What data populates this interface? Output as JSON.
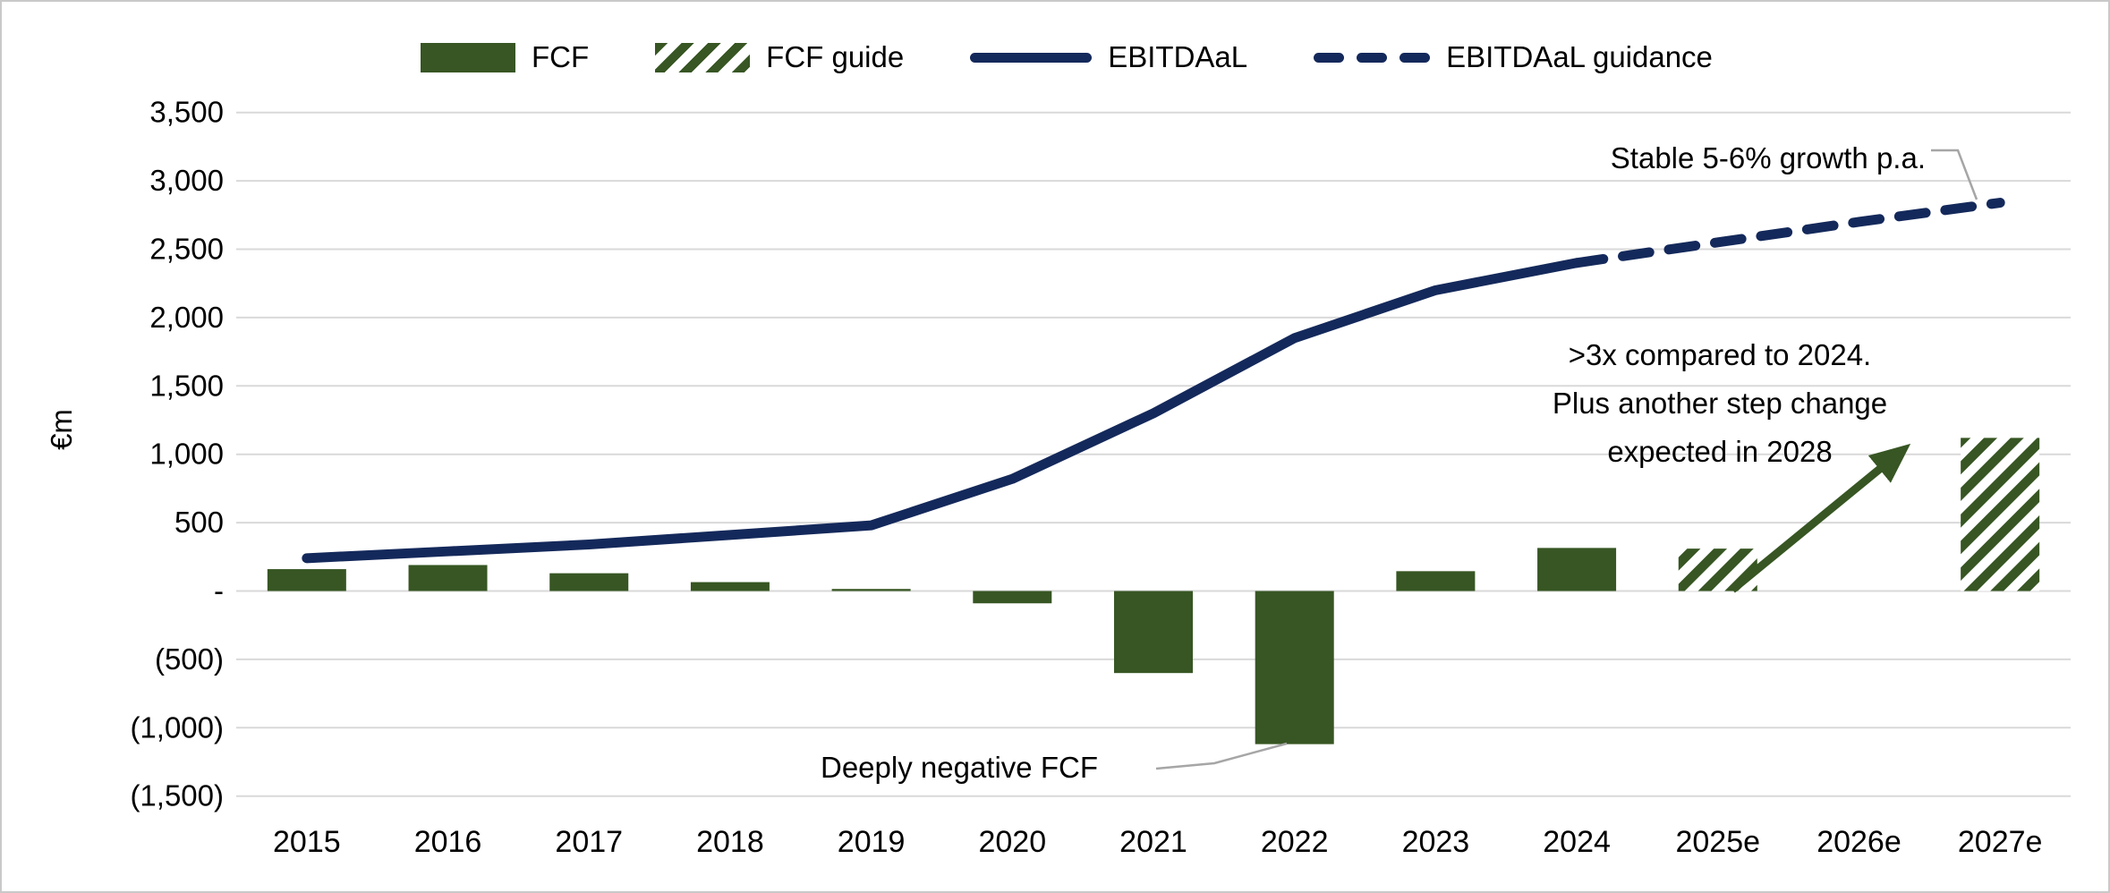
{
  "chart_data": {
    "type": "combo_bar_line",
    "ylabel": "€m",
    "categories": [
      "2015",
      "2016",
      "2017",
      "2018",
      "2019",
      "2020",
      "2021",
      "2022",
      "2023",
      "2024",
      "2025e",
      "2026e",
      "2027e"
    ],
    "y_axis": {
      "min": -1500,
      "max": 3500,
      "step": 500,
      "tick_labels": [
        "3,500",
        "3,000",
        "2,500",
        "2,000",
        "1,500",
        "1,000",
        "500",
        "-",
        "(500)",
        "(1,000)",
        "(1,500)"
      ]
    },
    "grid": true,
    "legend_position": "top",
    "series": [
      {
        "name": "FCF",
        "type": "bar",
        "style": "solid",
        "color": "#375623",
        "values": [
          160,
          190,
          130,
          65,
          15,
          -90,
          -600,
          -1120,
          145,
          315,
          null,
          null,
          null
        ]
      },
      {
        "name": "FCF guide",
        "type": "bar",
        "style": "hatched",
        "color": "#375623",
        "values": [
          null,
          null,
          null,
          null,
          null,
          null,
          null,
          null,
          null,
          null,
          310,
          null,
          1120
        ]
      },
      {
        "name": "EBITDAaL",
        "type": "line",
        "style": "solid",
        "color": "#14295B",
        "values": [
          240,
          290,
          340,
          410,
          480,
          820,
          1300,
          1850,
          2200,
          2400,
          null,
          null,
          null
        ]
      },
      {
        "name": "EBITDAaL guidance",
        "type": "line",
        "style": "dashed",
        "color": "#14295B",
        "values": [
          null,
          null,
          null,
          null,
          null,
          null,
          null,
          null,
          null,
          2400,
          2550,
          2700,
          2840
        ]
      }
    ],
    "gridline_color": "#D9D9D9",
    "callout_color": "#A6A6A6"
  },
  "legend": {
    "items": [
      {
        "label": "FCF"
      },
      {
        "label": "FCF guide"
      },
      {
        "label": "EBITDAaL"
      },
      {
        "label": "EBITDAaL guidance"
      }
    ]
  },
  "annotations": {
    "growth": {
      "text": "Stable 5-6% growth p.a."
    },
    "step_change": {
      "lines": [
        ">3x compared to 2024.",
        "Plus another step change",
        "expected in 2028"
      ]
    },
    "negative_fcf": {
      "text": "Deeply negative FCF"
    }
  }
}
